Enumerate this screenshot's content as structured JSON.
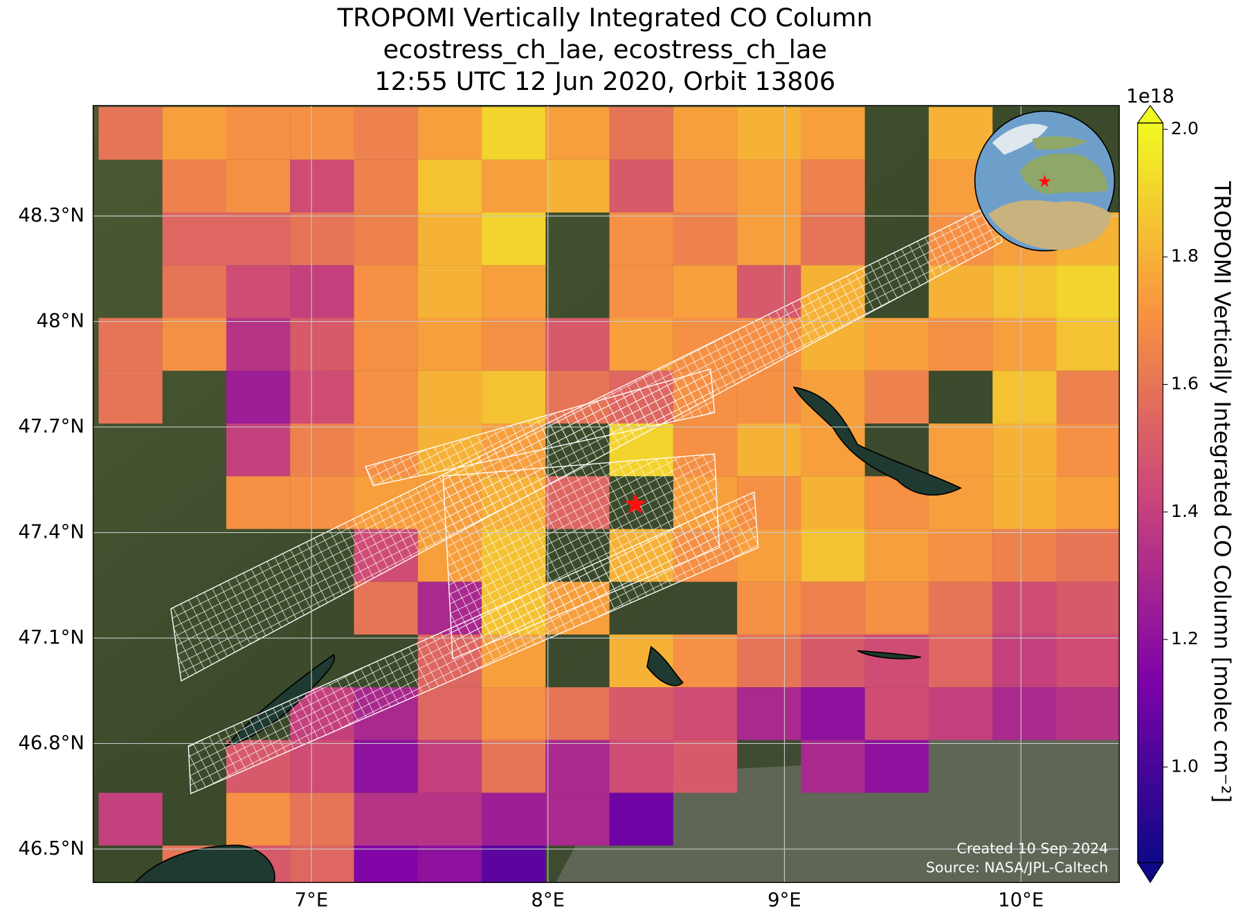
{
  "chart_data": {
    "type": "map",
    "title": [
      "TROPOMI Vertically Integrated CO Column",
      "ecostress_ch_lae, ecostress_ch_lae",
      "12:55 UTC 12 Jun 2020, Orbit 13806"
    ],
    "xlim": [
      6.077,
      10.416
    ],
    "ylim": [
      46.405,
      48.614
    ],
    "xticks": [
      {
        "value": 7,
        "label": "7°E"
      },
      {
        "value": 8,
        "label": "8°E"
      },
      {
        "value": 9,
        "label": "9°E"
      },
      {
        "value": 10,
        "label": "10°E"
      }
    ],
    "yticks": [
      {
        "value": 46.5,
        "label": "46.5°N"
      },
      {
        "value": 46.8,
        "label": "46.8°N"
      },
      {
        "value": 47.1,
        "label": "47.1°N"
      },
      {
        "value": 47.4,
        "label": "47.4°N"
      },
      {
        "value": 47.7,
        "label": "47.7°N"
      },
      {
        "value": 48,
        "label": "48°N"
      },
      {
        "value": 48.3,
        "label": "48.3°N"
      }
    ],
    "grid": true,
    "colormap": "plasma",
    "clim": [
      0.85,
      2.01
    ],
    "colorbar_ticks": [
      {
        "value": 1,
        "label": "1.0"
      },
      1.2,
      1.4,
      1.6,
      1.8,
      {
        "value": 2,
        "label": "2.0"
      }
    ],
    "colorbar_exponent": "1e18",
    "colorbar_label": "TROPOMI Vertically Integrated CO Column [molec cm⁻²]",
    "lon_edges": [
      6.1,
      6.37,
      6.64,
      6.91,
      7.18,
      7.45,
      7.72,
      7.99,
      8.26,
      8.53,
      8.8,
      9.07,
      9.34,
      9.61,
      9.88,
      10.15,
      10.42
    ],
    "lat_edges": [
      48.61,
      48.46,
      48.31,
      48.16,
      48.01,
      47.86,
      47.71,
      47.56,
      47.41,
      47.26,
      47.11,
      46.96,
      46.81,
      46.66,
      46.51,
      46.36
    ],
    "values": [
      [
        1.6,
        1.75,
        1.7,
        1.7,
        1.65,
        1.75,
        1.9,
        1.75,
        1.6,
        1.75,
        1.8,
        1.75,
        null,
        1.8,
        null,
        null
      ],
      [
        null,
        1.65,
        1.7,
        1.45,
        1.65,
        1.85,
        1.75,
        1.8,
        1.5,
        1.7,
        1.75,
        1.65,
        null,
        1.75,
        null,
        null
      ],
      [
        null,
        1.55,
        1.55,
        1.6,
        1.65,
        1.8,
        1.9,
        null,
        1.7,
        1.65,
        1.75,
        1.6,
        null,
        1.7,
        1.75,
        1.8
      ],
      [
        null,
        1.6,
        1.45,
        1.4,
        1.7,
        1.8,
        1.75,
        null,
        1.7,
        1.75,
        1.5,
        1.8,
        null,
        1.8,
        1.85,
        1.9
      ],
      [
        1.6,
        1.7,
        1.35,
        1.5,
        1.7,
        1.75,
        1.7,
        1.5,
        1.75,
        1.7,
        1.7,
        1.8,
        1.75,
        1.7,
        1.75,
        1.85
      ],
      [
        1.6,
        null,
        1.25,
        1.45,
        1.7,
        1.8,
        1.85,
        1.6,
        1.55,
        1.7,
        1.7,
        1.75,
        1.65,
        null,
        1.85,
        1.65
      ],
      [
        null,
        null,
        1.4,
        1.65,
        1.7,
        1.8,
        1.75,
        null,
        1.9,
        1.7,
        1.8,
        1.75,
        null,
        1.75,
        1.8,
        1.7
      ],
      [
        null,
        null,
        1.7,
        1.7,
        1.75,
        1.75,
        1.8,
        1.55,
        null,
        1.75,
        1.7,
        1.8,
        1.7,
        1.75,
        1.8,
        1.75
      ],
      [
        null,
        null,
        null,
        null,
        1.45,
        1.75,
        1.85,
        null,
        1.8,
        1.7,
        1.75,
        1.85,
        1.75,
        1.7,
        1.65,
        1.6
      ],
      [
        null,
        null,
        null,
        null,
        1.6,
        1.3,
        1.85,
        1.75,
        null,
        null,
        1.7,
        1.65,
        1.7,
        1.6,
        1.45,
        1.5
      ],
      [
        null,
        null,
        null,
        null,
        null,
        1.55,
        1.75,
        null,
        1.8,
        1.7,
        1.6,
        1.5,
        1.45,
        1.55,
        1.4,
        1.45
      ],
      [
        null,
        null,
        null,
        1.4,
        1.3,
        1.55,
        1.7,
        1.6,
        1.5,
        1.45,
        1.3,
        1.2,
        1.45,
        1.4,
        1.3,
        1.35
      ],
      [
        null,
        null,
        1.5,
        1.45,
        1.2,
        1.4,
        1.6,
        1.3,
        1.45,
        1.5,
        null,
        1.3,
        1.2,
        null,
        null,
        null
      ],
      [
        1.4,
        null,
        1.7,
        1.6,
        1.35,
        1.35,
        1.25,
        1.3,
        1.1,
        null,
        null,
        null,
        null,
        null,
        null,
        null
      ],
      [
        null,
        1.6,
        1.5,
        1.55,
        1.15,
        1.2,
        1.05,
        null,
        null,
        null,
        null,
        null,
        null,
        null,
        null,
        null
      ]
    ],
    "site": {
      "lon": 8.37,
      "lat": 47.48
    },
    "credits": [
      "Created 10 Sep 2024",
      "Source: NASA/JPL-Caltech"
    ]
  }
}
